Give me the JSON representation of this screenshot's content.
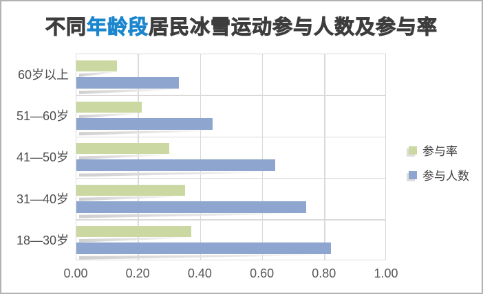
{
  "title": {
    "prefix": "不同",
    "highlight": "年龄段",
    "suffix": "居民冰雪运动参与人数及参与率"
  },
  "colors": {
    "title_dark": "#3d3d3d",
    "title_highlight": "#1b86cd",
    "rate_bar": "#ccd8a2",
    "count_bar": "#8ea6cf",
    "gridline": "#d9d9d9",
    "axis_text": "#595959",
    "category_text": "#4d4d4d",
    "frame_border": "#b2b2b2"
  },
  "legend": [
    {
      "label": "参与率",
      "series_key": "rate"
    },
    {
      "label": "参与人数",
      "series_key": "count"
    }
  ],
  "chart_data": {
    "type": "bar",
    "orientation": "horizontal",
    "title": "不同年龄段居民冰雪运动参与人数及参与率",
    "categories_top_to_bottom": [
      "60岁以上",
      "51—60岁",
      "41—50岁",
      "31—40岁",
      "18—30岁"
    ],
    "series": [
      {
        "name": "参与率",
        "values": [
          0.13,
          0.21,
          0.3,
          0.35,
          0.37
        ]
      },
      {
        "name": "参与人数",
        "values": [
          0.33,
          0.44,
          0.64,
          0.74,
          0.82
        ]
      }
    ],
    "xlabel": "",
    "ylabel": "",
    "x_ticks": [
      "0.00",
      "0.20",
      "0.40",
      "0.60",
      "0.80",
      "1.00"
    ],
    "xlim": [
      0.0,
      1.0
    ],
    "grid": true,
    "legend_position": "right"
  }
}
